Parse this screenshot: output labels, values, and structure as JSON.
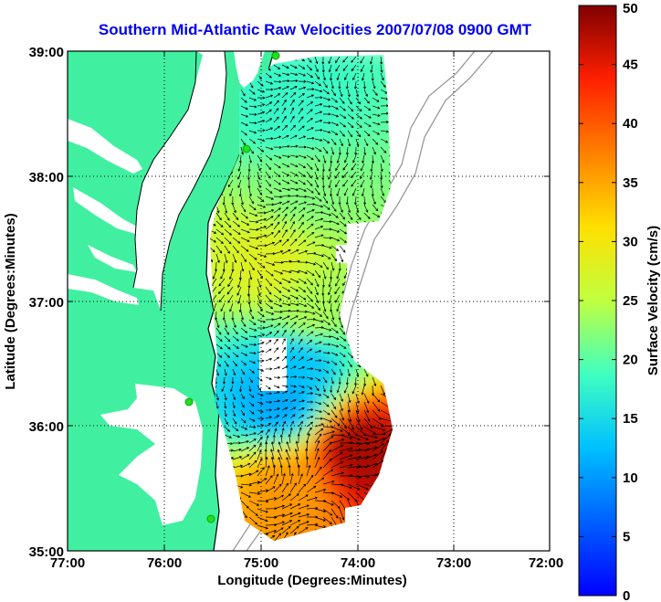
{
  "chart_data": {
    "type": "heatmap",
    "title": "Southern Mid-Atlantic Raw Velocities 2007/07/08 0900 GMT",
    "xlabel": "Longitude (Degrees:Minutes)",
    "ylabel": "Latitude (Degrees:Minutes)",
    "x_ticks": [
      "77:00",
      "76:00",
      "75:00",
      "74:00",
      "73:00",
      "72:00"
    ],
    "y_ticks": [
      "39:00",
      "38:00",
      "37:00",
      "36:00",
      "35:00"
    ],
    "xlim": [
      -77,
      -72
    ],
    "ylim": [
      35,
      39
    ],
    "grid": true,
    "colorbar": {
      "label": "Surface Velocity (cm/s)",
      "ticks": [
        "0",
        "5",
        "10",
        "15",
        "20",
        "25",
        "30",
        "35",
        "40",
        "45",
        "50"
      ],
      "range": [
        0,
        50
      ],
      "colormap": "jet"
    },
    "velocity_regions": [
      {
        "lon": -74.7,
        "lat": 38.5,
        "speed": 18
      },
      {
        "lon": -74.6,
        "lat": 37.9,
        "speed": 22
      },
      {
        "lon": -74.9,
        "lat": 37.3,
        "speed": 28
      },
      {
        "lon": -74.5,
        "lat": 36.9,
        "speed": 24
      },
      {
        "lon": -74.6,
        "lat": 36.5,
        "speed": 13
      },
      {
        "lon": -74.8,
        "lat": 36.2,
        "speed": 11
      },
      {
        "lon": -74.0,
        "lat": 35.8,
        "speed": 48
      },
      {
        "lon": -74.7,
        "lat": 35.5,
        "speed": 36
      }
    ]
  },
  "colors": {
    "land": "#40f0a0",
    "title": "#0000ee",
    "coastline": "#000000",
    "bathymetry": "#999999",
    "hf_site": "#22dd22"
  }
}
